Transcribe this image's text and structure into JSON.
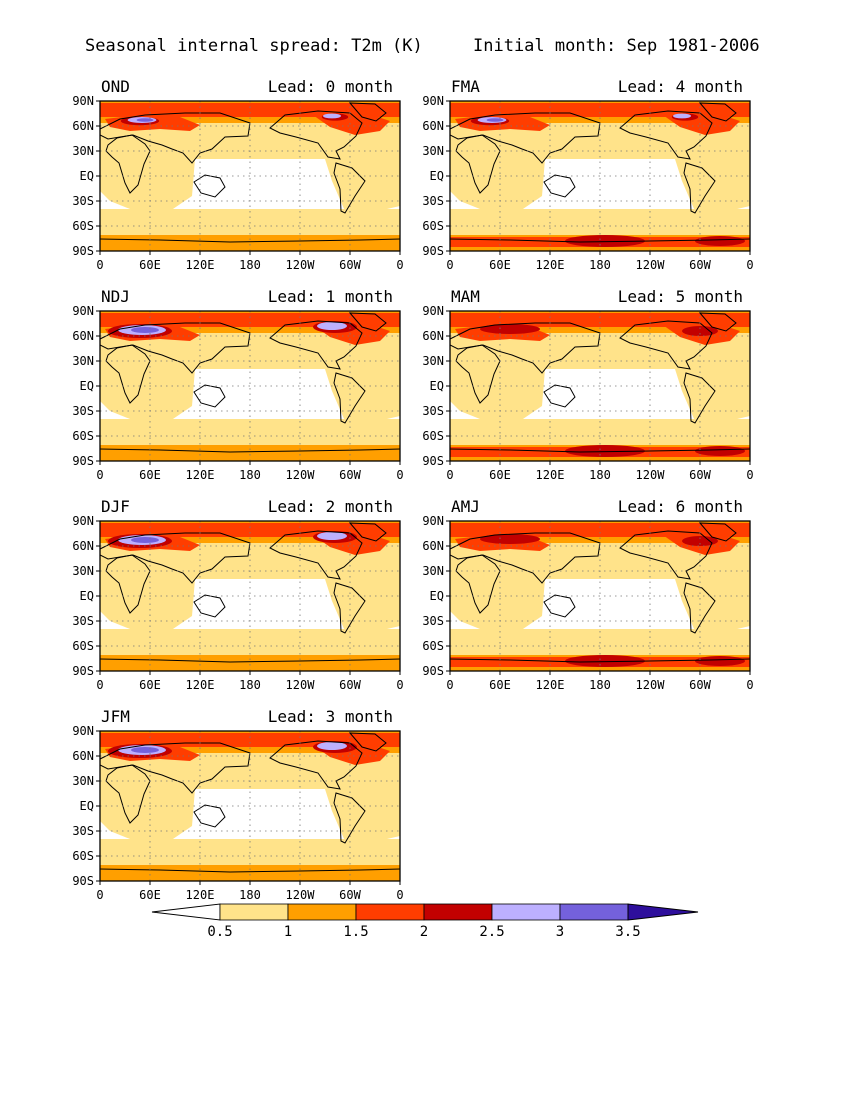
{
  "figure": {
    "title_left": "Seasonal internal spread: T2m (K)",
    "title_right": "Initial month: Sep 1981-2006"
  },
  "lat_ticks": [
    "90N",
    "60N",
    "30N",
    "EQ",
    "30S",
    "60S",
    "90S"
  ],
  "lon_ticks": [
    "0",
    "60E",
    "120E",
    "180",
    "120W",
    "60W",
    "0"
  ],
  "panels": [
    {
      "season": "OND",
      "lead_label": "Lead: 0 month",
      "lead": 0
    },
    {
      "season": "FMA",
      "lead_label": "Lead: 4 month",
      "lead": 4
    },
    {
      "season": "NDJ",
      "lead_label": "Lead: 1 month",
      "lead": 1
    },
    {
      "season": "MAM",
      "lead_label": "Lead: 5 month",
      "lead": 5
    },
    {
      "season": "DJF",
      "lead_label": "Lead: 2 month",
      "lead": 2
    },
    {
      "season": "AMJ",
      "lead_label": "Lead: 6 month",
      "lead": 6
    },
    {
      "season": "JFM",
      "lead_label": "Lead: 3 month",
      "lead": 3
    }
  ],
  "colorbar": {
    "levels": [
      "0.5",
      "1",
      "1.5",
      "2",
      "2.5",
      "3",
      "3.5"
    ],
    "colors": [
      "#ffffff",
      "#ffe38a",
      "#ff9f00",
      "#ff3d00",
      "#c20000",
      "#bdb0ff",
      "#7461dc",
      "#2e0f9c"
    ]
  }
}
